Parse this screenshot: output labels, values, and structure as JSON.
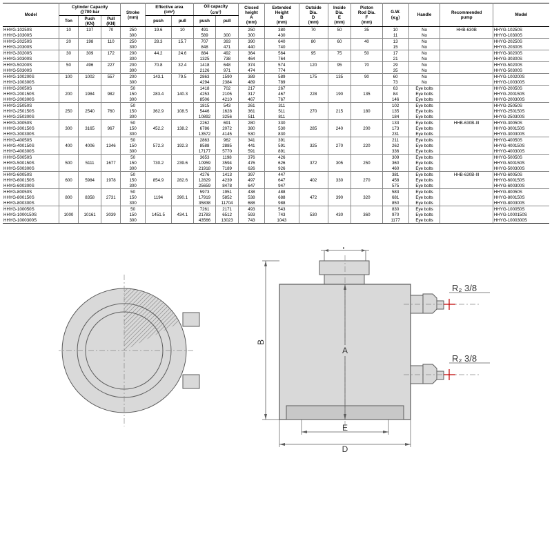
{
  "headers": {
    "model": "Model",
    "capacity": "Cylinder Capacity\n@700 bar",
    "ton": "Ton",
    "push_kn": "Push\n(KN)",
    "pull_kn": "Pull\n(KN)",
    "stroke": "Stroke\n(mm)",
    "eff_area": "Effective area\n(cm²)",
    "oil_cap": "Oil capacity\n（cm³）",
    "push": "push",
    "pull": "pull",
    "closed": "Closed\nheight\nA\n(mm)",
    "extended": "Extended\nHeight\nB\n(mm)",
    "outside": "Outside\nDia.\nD\n(mm)",
    "inside": "Inside\nDia.\nE\n(mm)",
    "piston": "Piston\nRod Dia.\nF\n(mm)",
    "gw": "G.W.\n（Kg）",
    "handle": "Handle",
    "pump": "Recommended\npump"
  },
  "rows": [
    {
      "g": 1,
      "m": "HHYG-10250S",
      "ton": "10",
      "pk": "137",
      "pl": "70",
      "st": "250",
      "eap": "19.6",
      "eal": "10",
      "ocp": "491",
      "ocl": "",
      "ch": "250",
      "eh": "380",
      "od": "70",
      "id": "50",
      "pd": "35",
      "gw": "10",
      "h": "No",
      "pump": "HHB-630B",
      "m2": "HHYG-10250S"
    },
    {
      "g": 0,
      "m": "HHYG-10300S",
      "ton": "",
      "pk": "",
      "pl": "",
      "st": "300",
      "eap": "",
      "eal": "",
      "ocp": "589",
      "ocl": "300",
      "ch": "300",
      "eh": "430",
      "od": "",
      "id": "",
      "pd": "",
      "gw": "11",
      "h": "No",
      "pump": "",
      "m2": "HHYG-10300S"
    },
    {
      "g": 1,
      "m": "HHYG-20250S",
      "ton": "20",
      "pk": "198",
      "pl": "110",
      "st": "250",
      "eap": "28.3",
      "eal": "15.7",
      "ocp": "707",
      "ocl": "393",
      "ch": "390",
      "eh": "640",
      "od": "80",
      "id": "60",
      "pd": "40",
      "gw": "13",
      "h": "No",
      "pump": "",
      "m2": "HHYG-20250S"
    },
    {
      "g": 0,
      "m": "HHYG-20300S",
      "ton": "",
      "pk": "",
      "pl": "",
      "st": "300",
      "eap": "",
      "eal": "",
      "ocp": "848",
      "ocl": "471",
      "ch": "440",
      "eh": "740",
      "od": "",
      "id": "",
      "pd": "",
      "gw": "15",
      "h": "No",
      "pump": "",
      "m2": "HHYG-20300S"
    },
    {
      "g": 1,
      "m": "HHYG-30200S",
      "ton": "30",
      "pk": "309",
      "pl": "172",
      "st": "200",
      "eap": "44.2",
      "eal": "24.6",
      "ocp": "884",
      "ocl": "492",
      "ch": "364",
      "eh": "564",
      "od": "95",
      "id": "75",
      "pd": "50",
      "gw": "17",
      "h": "No",
      "pump": "",
      "m2": "HHYG-30200S"
    },
    {
      "g": 0,
      "m": "HHYG-30300S",
      "ton": "",
      "pk": "",
      "pl": "",
      "st": "300",
      "eap": "",
      "eal": "",
      "ocp": "1325",
      "ocl": "738",
      "ch": "464",
      "eh": "764",
      "od": "",
      "id": "",
      "pd": "",
      "gw": "21",
      "h": "No",
      "pump": "",
      "m2": "HHYG-30300S"
    },
    {
      "g": 1,
      "m": "HHYG-50200S",
      "ton": "50",
      "pk": "496",
      "pl": "227",
      "st": "200",
      "eap": "70.8",
      "eal": "32.4",
      "ocp": "1418",
      "ocl": "648",
      "ch": "374",
      "eh": "574",
      "od": "120",
      "id": "95",
      "pd": "70",
      "gw": "29",
      "h": "No",
      "pump": "",
      "m2": "HHYG-50200S"
    },
    {
      "g": 0,
      "m": "HHYG-50300S",
      "ton": "",
      "pk": "",
      "pl": "",
      "st": "300",
      "eap": "",
      "eal": "",
      "ocp": "2126",
      "ocl": "971",
      "ch": "474",
      "eh": "774",
      "od": "",
      "id": "",
      "pd": "",
      "gw": "35",
      "h": "No",
      "pump": "",
      "m2": "HHYG-50300S"
    },
    {
      "g": 1,
      "m": "HHYG-100200S",
      "ton": "100",
      "pk": "1002",
      "pl": "557",
      "st": "200",
      "eap": "143.1",
      "eal": "79.5",
      "ocp": "2863",
      "ocl": "1590",
      "ch": "389",
      "eh": "589",
      "od": "175",
      "id": "135",
      "pd": "90",
      "gw": "60",
      "h": "No",
      "pump": "",
      "m2": "HHYG-100200S"
    },
    {
      "g": 0,
      "m": "HHYG-100300S",
      "ton": "",
      "pk": "",
      "pl": "",
      "st": "300",
      "eap": "",
      "eal": "",
      "ocp": "4294",
      "ocl": "2384",
      "ch": "489",
      "eh": "789",
      "od": "",
      "id": "",
      "pd": "",
      "gw": "73",
      "h": "No",
      "pump": "",
      "m2": "HHYG-100300S"
    },
    {
      "g": 1,
      "m": "HHYG-20050S",
      "ton": "",
      "pk": "",
      "pl": "",
      "st": "50",
      "eap": "",
      "eal": "",
      "ocp": "1418",
      "ocl": "702",
      "ch": "217",
      "eh": "267",
      "od": "",
      "id": "",
      "pd": "",
      "gw": "63",
      "h": "Eye bolts",
      "pump": "",
      "m2": "HHYG-20050S"
    },
    {
      "g": 0,
      "m": "HHYG-200150S",
      "ton": "200",
      "pk": "1984",
      "pl": "982",
      "st": "150",
      "eap": "283.4",
      "eal": "140.3",
      "ocp": "4253",
      "ocl": "2105",
      "ch": "317",
      "eh": "467",
      "od": "228",
      "id": "190",
      "pd": "135",
      "gw": "84",
      "h": "Eye bolts",
      "pump": "",
      "m2": "HHYG-200150S"
    },
    {
      "g": 0,
      "m": "HHYG-200300S",
      "ton": "",
      "pk": "",
      "pl": "",
      "st": "300",
      "eap": "",
      "eal": "",
      "ocp": "8506",
      "ocl": "4210",
      "ch": "467",
      "eh": "767",
      "od": "",
      "id": "",
      "pd": "",
      "gw": "146",
      "h": "Eye bolts",
      "pump": "",
      "m2": "HHYG-200300S"
    },
    {
      "g": 1,
      "m": "HHYG-25050S",
      "ton": "",
      "pk": "",
      "pl": "",
      "st": "50",
      "eap": "",
      "eal": "",
      "ocp": "1815",
      "ocl": "543",
      "ch": "261",
      "eh": "311",
      "od": "",
      "id": "",
      "pd": "",
      "gw": "102",
      "h": "Eye bolts",
      "pump": "",
      "m2": "HHYG-25050S"
    },
    {
      "g": 0,
      "m": "HHYG-250150S",
      "ton": "250",
      "pk": "2540",
      "pl": "760",
      "st": "150",
      "eap": "362.9",
      "eal": "108.5",
      "ocp": "5446",
      "ocl": "1628",
      "ch": "361",
      "eh": "511",
      "od": "270",
      "id": "215",
      "pd": "180",
      "gw": "135",
      "h": "Eye bolts",
      "pump": "",
      "m2": "HHYG-250150S"
    },
    {
      "g": 0,
      "m": "HHYG-250300S",
      "ton": "",
      "pk": "",
      "pl": "",
      "st": "300",
      "eap": "",
      "eal": "",
      "ocp": "10892",
      "ocl": "3256",
      "ch": "511",
      "eh": "811",
      "od": "",
      "id": "",
      "pd": "",
      "gw": "184",
      "h": "Eye bolts",
      "pump": "",
      "m2": "HHYG-250300S"
    },
    {
      "g": 1,
      "m": "HHYG-30050S",
      "ton": "",
      "pk": "",
      "pl": "",
      "st": "50",
      "eap": "",
      "eal": "",
      "ocp": "2262",
      "ocl": "691",
      "ch": "280",
      "eh": "330",
      "od": "",
      "id": "",
      "pd": "",
      "gw": "133",
      "h": "Eye bolts",
      "pump": "HHB-630B-III",
      "m2": "HHYG-30050S"
    },
    {
      "g": 0,
      "m": "HHYG-300150S",
      "ton": "300",
      "pk": "3165",
      "pl": "967",
      "st": "150",
      "eap": "452.2",
      "eal": "138.2",
      "ocp": "6786",
      "ocl": "2072",
      "ch": "380",
      "eh": "530",
      "od": "285",
      "id": "240",
      "pd": "200",
      "gw": "173",
      "h": "Eye bolts",
      "pump": "",
      "m2": "HHYG-300150S"
    },
    {
      "g": 0,
      "m": "HHYG-300300S",
      "ton": "",
      "pk": "",
      "pl": "",
      "st": "300",
      "eap": "",
      "eal": "",
      "ocp": "13572",
      "ocl": "4145",
      "ch": "530",
      "eh": "830",
      "od": "",
      "id": "",
      "pd": "",
      "gw": "231",
      "h": "Eye bolts",
      "pump": "",
      "m2": "HHYG-300300S"
    },
    {
      "g": 1,
      "m": "HHYG-40050S",
      "ton": "",
      "pk": "",
      "pl": "",
      "st": "50",
      "eap": "",
      "eal": "",
      "ocp": "2863",
      "ocl": "962",
      "ch": "341",
      "eh": "391",
      "od": "",
      "id": "",
      "pd": "",
      "gw": "211",
      "h": "Eye bolts",
      "pump": "",
      "m2": "HHYG-40050S"
    },
    {
      "g": 0,
      "m": "HHYG-400150S",
      "ton": "400",
      "pk": "4006",
      "pl": "1346",
      "st": "150",
      "eap": "572.3",
      "eal": "192.3",
      "ocp": "8588",
      "ocl": "2885",
      "ch": "441",
      "eh": "591",
      "od": "325",
      "id": "270",
      "pd": "220",
      "gw": "262",
      "h": "Eye bolts",
      "pump": "",
      "m2": "HHYG-400150S"
    },
    {
      "g": 0,
      "m": "HHYG-400300S",
      "ton": "",
      "pk": "",
      "pl": "",
      "st": "300",
      "eap": "",
      "eal": "",
      "ocp": "17177",
      "ocl": "5770",
      "ch": "591",
      "eh": "891",
      "od": "",
      "id": "",
      "pd": "",
      "gw": "336",
      "h": "Eye bolts",
      "pump": "",
      "m2": "HHYG-400300S"
    },
    {
      "g": 1,
      "m": "HHYG-50050S",
      "ton": "",
      "pk": "",
      "pl": "",
      "st": "50",
      "eap": "",
      "eal": "",
      "ocp": "3653",
      "ocl": "1198",
      "ch": "376",
      "eh": "426",
      "od": "",
      "id": "",
      "pd": "",
      "gw": "309",
      "h": "Eye bolts",
      "pump": "",
      "m2": "HHYG-50050S"
    },
    {
      "g": 0,
      "m": "HHYG-500150S",
      "ton": "500",
      "pk": "5111",
      "pl": "1677",
      "st": "150",
      "eap": "730.2",
      "eal": "239.6",
      "ocp": "10959",
      "ocl": "3594",
      "ch": "476",
      "eh": "626",
      "od": "372",
      "id": "305",
      "pd": "250",
      "gw": "360",
      "h": "Eye bolts",
      "pump": "",
      "m2": "HHYG-500150S"
    },
    {
      "g": 0,
      "m": "HHYG-500300S",
      "ton": "",
      "pk": "",
      "pl": "",
      "st": "300",
      "eap": "",
      "eal": "",
      "ocp": "21918",
      "ocl": "7189",
      "ch": "626",
      "eh": "926",
      "od": "",
      "id": "",
      "pd": "",
      "gw": "460",
      "h": "Eye bolts",
      "pump": "",
      "m2": "HHYG-500300S"
    },
    {
      "g": 1,
      "m": "HHYG-60050S",
      "ton": "",
      "pk": "",
      "pl": "",
      "st": "50",
      "eap": "",
      "eal": "",
      "ocp": "4276",
      "ocl": "1413",
      "ch": "397",
      "eh": "447",
      "od": "",
      "id": "",
      "pd": "",
      "gw": "381",
      "h": "Eye bolts",
      "pump": "HHB-630B-III",
      "m2": "HHYG-60050S"
    },
    {
      "g": 0,
      "m": "HHYG-600150S",
      "ton": "600",
      "pk": "5984",
      "pl": "1978",
      "st": "150",
      "eap": "854.9",
      "eal": "282.6",
      "ocp": "12829",
      "ocl": "4239",
      "ch": "497",
      "eh": "647",
      "od": "402",
      "id": "330",
      "pd": "270",
      "gw": "458",
      "h": "Eye bolts",
      "pump": "",
      "m2": "HHYG-600150S"
    },
    {
      "g": 0,
      "m": "HHYG-600300S",
      "ton": "",
      "pk": "",
      "pl": "",
      "st": "300",
      "eap": "",
      "eal": "",
      "ocp": "25659",
      "ocl": "8478",
      "ch": "647",
      "eh": "947",
      "od": "",
      "id": "",
      "pd": "",
      "gw": "575",
      "h": "Eye bolts",
      "pump": "",
      "m2": "HHYG-600300S"
    },
    {
      "g": 1,
      "m": "HHYG-80050S",
      "ton": "",
      "pk": "",
      "pl": "",
      "st": "50",
      "eap": "",
      "eal": "",
      "ocp": "5973",
      "ocl": "1951",
      "ch": "438",
      "eh": "488",
      "od": "",
      "id": "",
      "pd": "",
      "gw": "583",
      "h": "Eye bolts",
      "pump": "",
      "m2": "HHYG-80050S"
    },
    {
      "g": 0,
      "m": "HHYG-800150S",
      "ton": "800",
      "pk": "8358",
      "pl": "2731",
      "st": "150",
      "eap": "1194",
      "eal": "390.1",
      "ocp": "17919",
      "ocl": "5852",
      "ch": "538",
      "eh": "688",
      "od": "472",
      "id": "390",
      "pd": "320",
      "gw": "681",
      "h": "Eye bolts",
      "pump": "",
      "m2": "HHYG-800150S"
    },
    {
      "g": 0,
      "m": "HHYG-800300S",
      "ton": "",
      "pk": "",
      "pl": "",
      "st": "300",
      "eap": "",
      "eal": "",
      "ocp": "35838",
      "ocl": "11704",
      "ch": "688",
      "eh": "988",
      "od": "",
      "id": "",
      "pd": "",
      "gw": "850",
      "h": "Eye bolts",
      "pump": "",
      "m2": "HHYG-800300S"
    },
    {
      "g": 1,
      "m": "HHYG-100050S",
      "ton": "",
      "pk": "",
      "pl": "",
      "st": "50",
      "eap": "",
      "eal": "",
      "ocp": "7261",
      "ocl": "2171",
      "ch": "493",
      "eh": "543",
      "od": "",
      "id": "",
      "pd": "",
      "gw": "830",
      "h": "Eye bolts",
      "pump": "",
      "m2": "HHYG-100050S"
    },
    {
      "g": 0,
      "m": "HHYG-1000150S",
      "ton": "1000",
      "pk": "10161",
      "pl": "3039",
      "st": "150",
      "eap": "1451.5",
      "eal": "434.1",
      "ocp": "21783",
      "ocl": "6512",
      "ch": "593",
      "eh": "743",
      "od": "530",
      "id": "430",
      "pd": "360",
      "gw": "970",
      "h": "Eye bolts",
      "pump": "",
      "m2": "HHYG-1000150S"
    },
    {
      "g": 0,
      "m": "HHYG-1000300S",
      "ton": "",
      "pk": "",
      "pl": "",
      "st": "300",
      "eap": "",
      "eal": "",
      "ocp": "43566",
      "ocl": "13023",
      "ch": "743",
      "eh": "1043",
      "od": "",
      "id": "",
      "pd": "",
      "gw": "1177",
      "h": "Eye bolts",
      "pump": "",
      "m2": "HHYG-1000300S"
    }
  ],
  "diagram": {
    "labels": {
      "f": "F",
      "b": "B",
      "a": "A",
      "e": "E",
      "d": "D",
      "r": "R₂ 3/8"
    },
    "colors": {
      "fill": "#d9d9d9",
      "stroke": "#5a5a5a",
      "dash": "#888",
      "red": "#c00000"
    }
  }
}
